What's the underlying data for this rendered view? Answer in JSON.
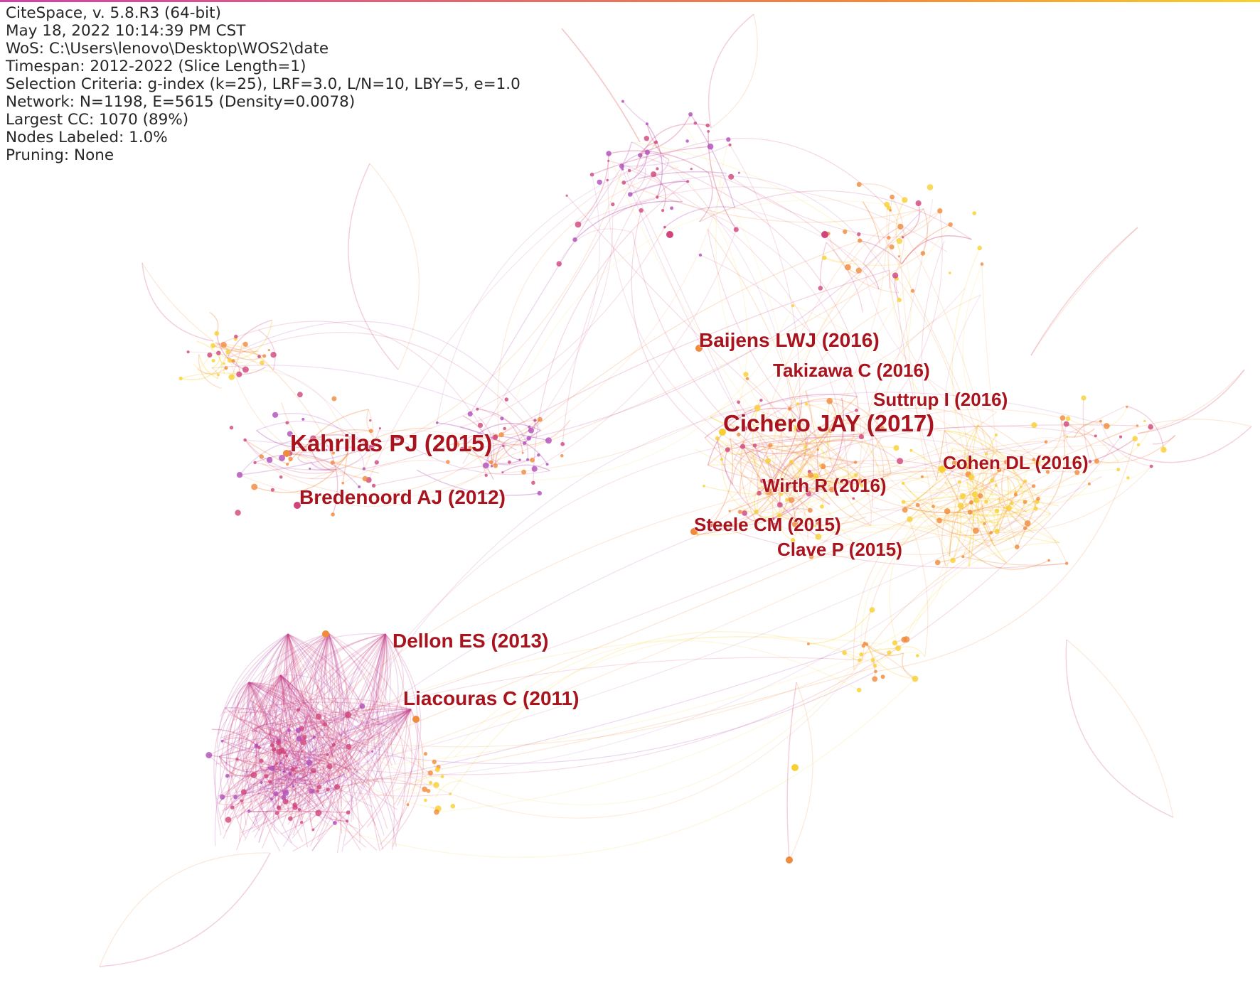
{
  "window": {
    "top_bar_color": "#cc44aa",
    "background": "#ffffff"
  },
  "info_panel": {
    "lines": [
      "CiteSpace, v. 5.8.R3 (64-bit)",
      "May 18, 2022 10:14:39 PM CST",
      "WoS: C:\\Users\\lenovo\\Desktop\\WOS2\\date",
      "Timespan: 2012-2022 (Slice Length=1)",
      "Selection Criteria: g-index (k=25), LRF=3.0, L/N=10, LBY=5, e=1.0",
      "Network: N=1198, E=5615 (Density=0.0078)",
      "Largest CC: 1070 (89%)",
      "Nodes Labeled: 1.0%",
      "Pruning: None"
    ]
  },
  "network": {
    "label_color": "#a8131d",
    "cluster_colors": {
      "purple": "#b04cb8",
      "magenta": "#d0447a",
      "orange": "#f08a3c",
      "yellow": "#f8d030"
    },
    "labels": [
      {
        "text": "Kahrilas PJ (2015)",
        "weight": "large"
      },
      {
        "text": "Cichero JAY (2017)",
        "weight": "large"
      },
      {
        "text": "Bredenoord AJ (2012)",
        "weight": "medium"
      },
      {
        "text": "Baijens LWJ (2016)",
        "weight": "medium"
      },
      {
        "text": "Takizawa C (2016)",
        "weight": "small"
      },
      {
        "text": "Suttrup I (2016)",
        "weight": "small"
      },
      {
        "text": "Cohen DL (2016)",
        "weight": "small"
      },
      {
        "text": "Wirth R (2016)",
        "weight": "small"
      },
      {
        "text": "Steele CM (2015)",
        "weight": "small"
      },
      {
        "text": "Clave P (2015)",
        "weight": "small"
      },
      {
        "text": "Dellon ES (2013)",
        "weight": "medium"
      },
      {
        "text": "Liacouras C (2011)",
        "weight": "medium"
      }
    ]
  }
}
